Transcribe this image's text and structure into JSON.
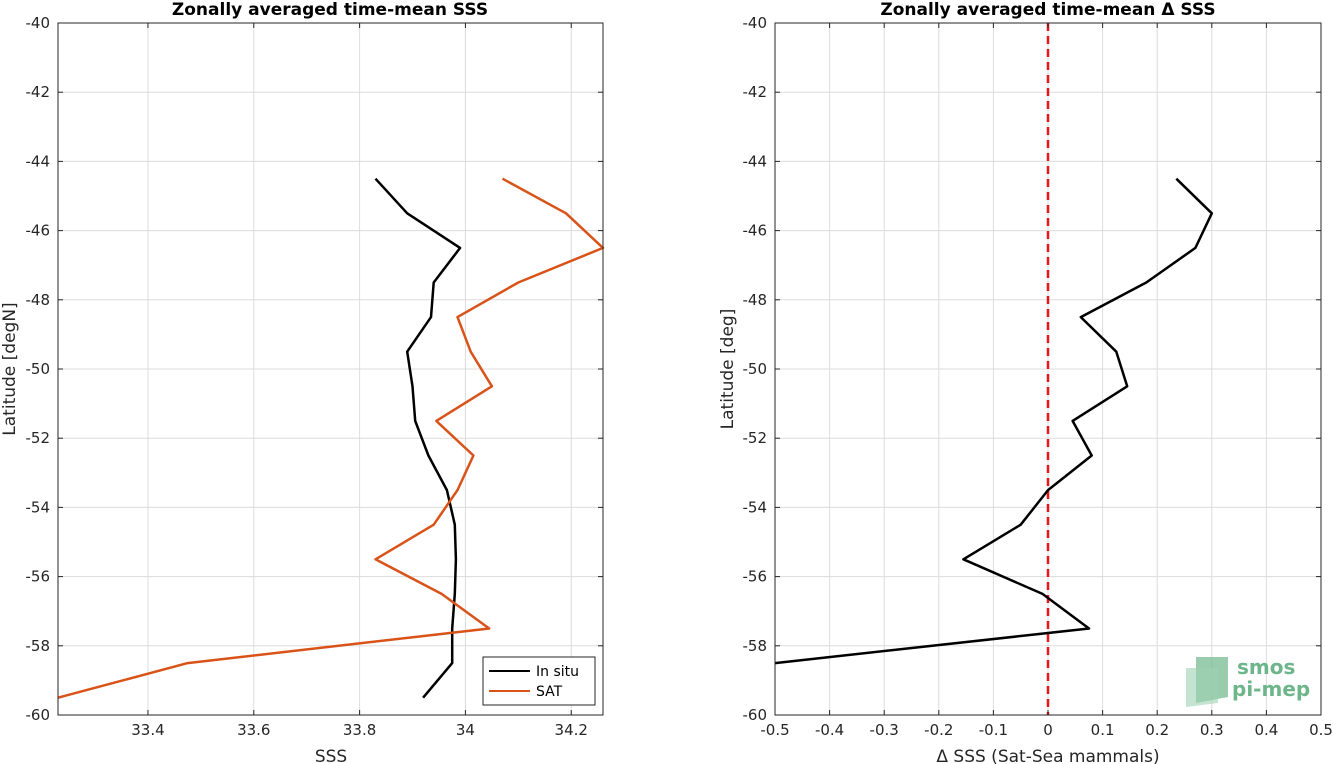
{
  "chart_data": [
    {
      "type": "line",
      "title": "Zonally averaged time-mean SSS",
      "xlabel": "SSS",
      "ylabel": "Latitude [degN]",
      "xlim": [
        33.23,
        34.26
      ],
      "ylim": [
        -60,
        -40
      ],
      "x_ticks": [
        33.4,
        33.6,
        33.8,
        34,
        34.2
      ],
      "x_tick_labels": [
        "33.4",
        "33.6",
        "33.8",
        "34",
        "34.2"
      ],
      "y_ticks": [
        -40,
        -42,
        -44,
        -46,
        -48,
        -50,
        -52,
        -54,
        -56,
        -58,
        -60
      ],
      "y_tick_labels": [
        "-40",
        "-42",
        "-44",
        "-46",
        "-48",
        "-50",
        "-52",
        "-54",
        "-56",
        "-58",
        "-60"
      ],
      "grid": true,
      "legend_position": "bottom-right",
      "latitude": [
        -44.5,
        -45.5,
        -46.5,
        -47.5,
        -48.5,
        -49.5,
        -50.5,
        -51.5,
        -52.5,
        -53.5,
        -54.5,
        -55.5,
        -56.5,
        -57.5,
        -58.5,
        -59.5
      ],
      "series": [
        {
          "name": "In situ",
          "color": "#000000",
          "x": [
            33.83,
            33.89,
            33.99,
            33.94,
            33.935,
            33.89,
            33.9,
            33.905,
            33.93,
            33.965,
            33.98,
            33.982,
            33.98,
            33.975,
            33.975,
            33.92
          ]
        },
        {
          "name": "SAT",
          "color": "#d95319",
          "x": [
            34.07,
            34.19,
            34.26,
            34.1,
            33.985,
            34.01,
            34.05,
            33.945,
            34.015,
            33.985,
            33.94,
            33.83,
            33.955,
            34.045,
            33.475,
            33.23
          ]
        }
      ]
    },
    {
      "type": "line",
      "title": "Zonally averaged time-mean Δ SSS",
      "xlabel": "Δ SSS (Sat-Sea mammals)",
      "ylabel": "Latitude [deg]",
      "xlim": [
        -0.5,
        0.5
      ],
      "ylim": [
        -60,
        -40
      ],
      "x_ticks": [
        -0.5,
        -0.4,
        -0.3,
        -0.2,
        -0.1,
        0,
        0.1,
        0.2,
        0.3,
        0.4,
        0.5
      ],
      "x_tick_labels": [
        "-0.5",
        "-0.4",
        "-0.3",
        "-0.2",
        "-0.1",
        "0",
        "0.1",
        "0.2",
        "0.3",
        "0.4",
        "0.5"
      ],
      "y_ticks": [
        -40,
        -42,
        -44,
        -46,
        -48,
        -50,
        -52,
        -54,
        -56,
        -58,
        -60
      ],
      "y_tick_labels": [
        "-40",
        "-42",
        "-44",
        "-46",
        "-48",
        "-50",
        "-52",
        "-54",
        "-56",
        "-58",
        "-60"
      ],
      "grid": true,
      "reference_line": {
        "x": 0,
        "color": "#e8151b",
        "style": "dashed"
      },
      "latitude": [
        -44.5,
        -45.5,
        -46.5,
        -47.5,
        -48.5,
        -49.5,
        -50.5,
        -51.5,
        -52.5,
        -53.5,
        -54.5,
        -55.5,
        -56.5,
        -57.5,
        -58.5
      ],
      "series": [
        {
          "name": "",
          "color": "#000000",
          "x": [
            0.235,
            0.3,
            0.27,
            0.18,
            0.06,
            0.125,
            0.145,
            0.045,
            0.08,
            0.0,
            -0.05,
            -0.155,
            -0.01,
            0.075,
            -0.5
          ]
        }
      ]
    }
  ],
  "logo": {
    "line1": "smos",
    "line2": "pi-mep",
    "color": "#6db58a"
  }
}
